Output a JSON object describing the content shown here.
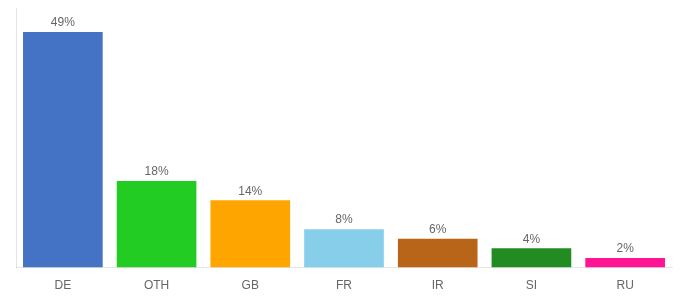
{
  "chart_data": {
    "type": "bar",
    "categories": [
      "DE",
      "OTH",
      "GB",
      "FR",
      "IR",
      "SI",
      "RU"
    ],
    "values": [
      49,
      18,
      14,
      8,
      6,
      4,
      2
    ],
    "value_labels": [
      "49%",
      "18%",
      "14%",
      "8%",
      "6%",
      "4%",
      "2%"
    ],
    "colors": [
      "#4472c4",
      "#22cc22",
      "#ffa500",
      "#87ceeb",
      "#b8651a",
      "#228b22",
      "#ff1493"
    ],
    "ylim": [
      0,
      54
    ],
    "data_labels": true,
    "grid": false,
    "tick_labels": "x"
  }
}
